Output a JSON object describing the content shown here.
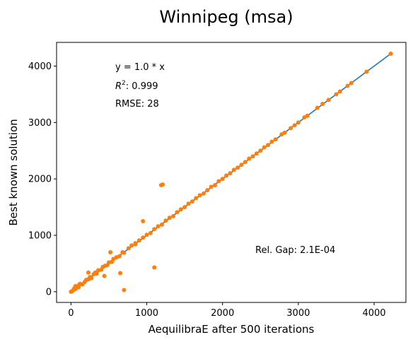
{
  "chart_data": {
    "type": "scatter",
    "title": "Winnipeg (msa)",
    "xlabel": "AequilibraE after 500 iterations",
    "ylabel": "Best known solution",
    "xlim": [
      -190,
      4420
    ],
    "ylim": [
      -190,
      4420
    ],
    "xticks": [
      0,
      1000,
      2000,
      3000,
      4000
    ],
    "yticks": [
      0,
      1000,
      2000,
      3000,
      4000
    ],
    "grid": false,
    "fit_line": {
      "slope": 1.0,
      "x": [
        0,
        4220
      ],
      "color": "#1f77b4"
    },
    "annotations": {
      "equation": "y = 1.0 * x",
      "r2_label": "R",
      "r2_sup": "2",
      "r2_value": ":  0.999",
      "rmse": "RMSE: 28",
      "rel_gap": "Rel. Gap: 2.1E-04"
    },
    "series": [
      {
        "color": "#ff7f0e",
        "points": [
          [
            0,
            0
          ],
          [
            15,
            10
          ],
          [
            30,
            25
          ],
          [
            40,
            55
          ],
          [
            60,
            50
          ],
          [
            80,
            90
          ],
          [
            100,
            80
          ],
          [
            120,
            140
          ],
          [
            150,
            130
          ],
          [
            180,
            170
          ],
          [
            200,
            210
          ],
          [
            230,
            220
          ],
          [
            250,
            260
          ],
          [
            270,
            240
          ],
          [
            300,
            310
          ],
          [
            320,
            340
          ],
          [
            340,
            320
          ],
          [
            360,
            380
          ],
          [
            400,
            390
          ],
          [
            420,
            440
          ],
          [
            450,
            460
          ],
          [
            480,
            470
          ],
          [
            500,
            520
          ],
          [
            540,
            530
          ],
          [
            560,
            580
          ],
          [
            600,
            610
          ],
          [
            640,
            630
          ],
          [
            680,
            700
          ],
          [
            700,
            690
          ],
          [
            760,
            770
          ],
          [
            800,
            820
          ],
          [
            850,
            840
          ],
          [
            900,
            910
          ],
          [
            950,
            960
          ],
          [
            1000,
            1010
          ],
          [
            1050,
            1040
          ],
          [
            1100,
            1110
          ],
          [
            1150,
            1160
          ],
          [
            1200,
            1190
          ],
          [
            1250,
            1260
          ],
          [
            1300,
            1310
          ],
          [
            1350,
            1340
          ],
          [
            1400,
            1410
          ],
          [
            1450,
            1460
          ],
          [
            1500,
            1500
          ],
          [
            1550,
            1560
          ],
          [
            1600,
            1600
          ],
          [
            1650,
            1660
          ],
          [
            1700,
            1710
          ],
          [
            1750,
            1740
          ],
          [
            1800,
            1800
          ],
          [
            1850,
            1860
          ],
          [
            1900,
            1890
          ],
          [
            1950,
            1960
          ],
          [
            2000,
            2000
          ],
          [
            2050,
            2060
          ],
          [
            2100,
            2100
          ],
          [
            2150,
            2160
          ],
          [
            2200,
            2200
          ],
          [
            2250,
            2250
          ],
          [
            2300,
            2300
          ],
          [
            2350,
            2360
          ],
          [
            2400,
            2400
          ],
          [
            2450,
            2450
          ],
          [
            2500,
            2500
          ],
          [
            2550,
            2560
          ],
          [
            2600,
            2600
          ],
          [
            2650,
            2660
          ],
          [
            2700,
            2700
          ],
          [
            2780,
            2790
          ],
          [
            2820,
            2820
          ],
          [
            2900,
            2900
          ],
          [
            2950,
            2950
          ],
          [
            3000,
            3000
          ],
          [
            3080,
            3090
          ],
          [
            3120,
            3120
          ],
          [
            3250,
            3260
          ],
          [
            3320,
            3330
          ],
          [
            3400,
            3400
          ],
          [
            3500,
            3500
          ],
          [
            3550,
            3550
          ],
          [
            3650,
            3650
          ],
          [
            3700,
            3700
          ],
          [
            3900,
            3900
          ],
          [
            4220,
            4220
          ],
          [
            1210,
            1900
          ],
          [
            1190,
            1890
          ],
          [
            950,
            1250
          ],
          [
            520,
            700
          ],
          [
            650,
            330
          ],
          [
            700,
            30
          ],
          [
            1100,
            430
          ],
          [
            440,
            280
          ],
          [
            230,
            340
          ],
          [
            60,
            100
          ],
          [
            110,
            130
          ],
          [
            850,
            860
          ]
        ]
      }
    ]
  }
}
